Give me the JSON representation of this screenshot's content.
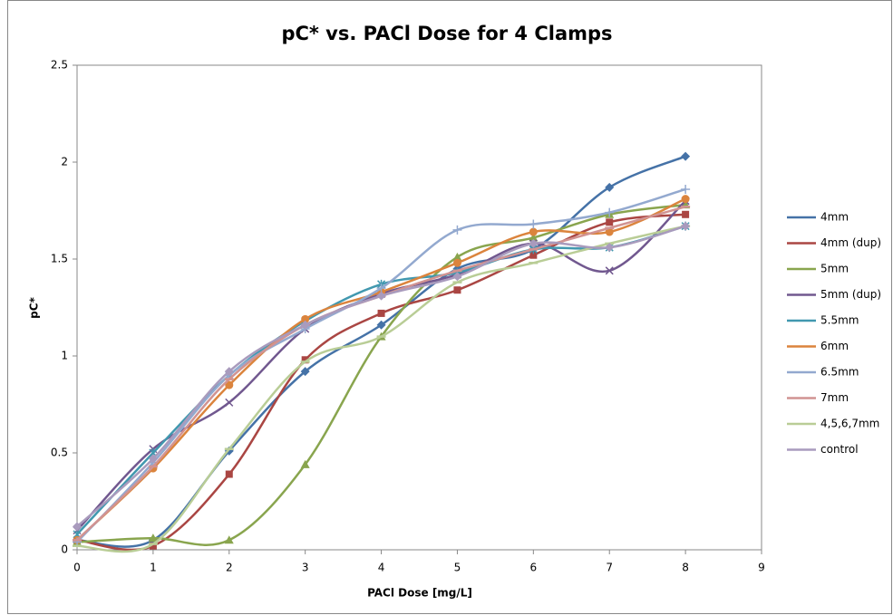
{
  "chart_data": {
    "type": "line",
    "title": "pC* vs. PACl Dose for 4 Clamps",
    "x_label": "PACl Dose [mg/L]",
    "y_label": "pC*",
    "x": [
      0,
      1,
      2,
      3,
      4,
      5,
      6,
      7,
      8
    ],
    "xlim": [
      0,
      9
    ],
    "xticks": [
      0,
      1,
      2,
      3,
      4,
      5,
      6,
      7,
      8,
      9
    ],
    "ylim": [
      0,
      2.5
    ],
    "yticks": [
      0,
      0.5,
      1,
      1.5,
      2,
      2.5
    ],
    "smooth": true,
    "legend": "right",
    "series": [
      {
        "name": "4mm",
        "color": "#4572a7",
        "marker": "diamond",
        "values": [
          0.05,
          0.05,
          0.51,
          0.92,
          1.16,
          1.45,
          1.55,
          1.87,
          2.03
        ]
      },
      {
        "name": "4mm (dup)",
        "color": "#aa4643",
        "marker": "square",
        "values": [
          0.05,
          0.02,
          0.39,
          0.98,
          1.22,
          1.34,
          1.52,
          1.69,
          1.73
        ]
      },
      {
        "name": "5mm",
        "color": "#89a54e",
        "marker": "triangle",
        "values": [
          0.04,
          0.06,
          0.05,
          0.44,
          1.1,
          1.51,
          1.61,
          1.73,
          1.78
        ]
      },
      {
        "name": "5mm (dup)",
        "color": "#71588f",
        "marker": "x",
        "values": [
          0.1,
          0.52,
          0.76,
          1.14,
          1.32,
          1.42,
          1.58,
          1.44,
          1.8
        ]
      },
      {
        "name": "5.5mm",
        "color": "#4198af",
        "marker": "star",
        "values": [
          0.08,
          0.5,
          0.9,
          1.18,
          1.37,
          1.43,
          1.55,
          1.56,
          1.67
        ]
      },
      {
        "name": "6mm",
        "color": "#db843d",
        "marker": "circle",
        "values": [
          0.05,
          0.42,
          0.85,
          1.19,
          1.33,
          1.48,
          1.64,
          1.64,
          1.81
        ]
      },
      {
        "name": "6.5mm",
        "color": "#93a9cf",
        "marker": "plus",
        "values": [
          0.04,
          0.45,
          0.9,
          1.14,
          1.35,
          1.65,
          1.68,
          1.74,
          1.86
        ]
      },
      {
        "name": "7mm",
        "color": "#d19392",
        "marker": "dash",
        "values": [
          0.05,
          0.43,
          0.88,
          1.16,
          1.31,
          1.44,
          1.55,
          1.66,
          1.77
        ]
      },
      {
        "name": "4,5,6,7mm",
        "color": "#b9cd96",
        "marker": "dash",
        "values": [
          0.02,
          0.03,
          0.52,
          0.97,
          1.1,
          1.38,
          1.48,
          1.58,
          1.67
        ]
      },
      {
        "name": "control",
        "color": "#a99bbd",
        "marker": "diamond",
        "values": [
          0.12,
          0.47,
          0.92,
          1.16,
          1.31,
          1.41,
          1.58,
          1.56,
          1.67
        ]
      }
    ]
  }
}
